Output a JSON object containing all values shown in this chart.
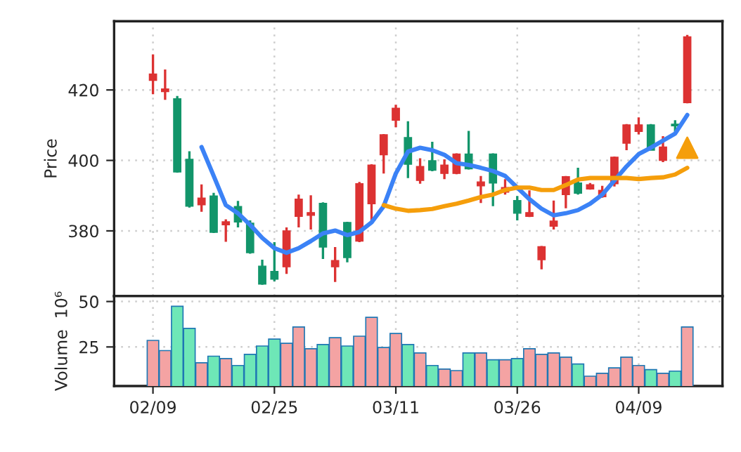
{
  "chart_data": [
    {
      "type": "candlestick",
      "ylabel": "Price",
      "ylim": [
        361.5,
        439.5
      ],
      "yticks": [
        380,
        400,
        420
      ],
      "grid": true,
      "tick_labels": "y",
      "legend": false,
      "categories": [
        null,
        null,
        null,
        null,
        null,
        null,
        null,
        null,
        null,
        null,
        null,
        null,
        null,
        null,
        null,
        null,
        null,
        null,
        null,
        null,
        null,
        null,
        null,
        null,
        null,
        null,
        null,
        null,
        null,
        null,
        null,
        null,
        null,
        null,
        null,
        null,
        null,
        null,
        null,
        null,
        null,
        null,
        null,
        null,
        null
      ],
      "ohlc": [
        [
          422.7,
          430.1,
          418.8,
          424.5
        ],
        [
          419.5,
          425.8,
          417.2,
          420.3
        ],
        [
          417.5,
          418.3,
          396.5,
          396.7
        ],
        [
          400.3,
          402.6,
          386.6,
          387.0
        ],
        [
          387.4,
          393.2,
          385.4,
          389.3
        ],
        [
          389.9,
          390.8,
          379.4,
          379.6
        ],
        [
          381.7,
          383.3,
          376.9,
          382.6
        ],
        [
          386.9,
          388.5,
          381.0,
          382.5
        ],
        [
          382.2,
          383.0,
          373.5,
          373.8
        ],
        [
          370.0,
          371.8,
          364.7,
          364.9
        ],
        [
          368.5,
          376.8,
          365.7,
          366.3
        ],
        [
          369.8,
          381.0,
          367.8,
          380.0
        ],
        [
          384.1,
          390.3,
          381.0,
          389.0
        ],
        [
          384.4,
          390.1,
          380.4,
          385.2
        ],
        [
          387.8,
          388.1,
          372.0,
          375.4
        ],
        [
          369.8,
          375.4,
          365.5,
          371.6
        ],
        [
          382.4,
          382.6,
          371.1,
          372.4
        ],
        [
          377.1,
          393.9,
          376.8,
          393.4
        ],
        [
          387.7,
          398.9,
          383.0,
          398.7
        ],
        [
          401.6,
          407.5,
          396.3,
          407.3
        ],
        [
          411.4,
          415.8,
          409.4,
          414.8
        ],
        [
          406.5,
          411.1,
          395.0,
          398.9
        ],
        [
          394.3,
          400.6,
          393.4,
          398.3
        ],
        [
          399.9,
          405.3,
          396.9,
          397.2
        ],
        [
          396.3,
          400.3,
          394.7,
          398.7
        ],
        [
          396.3,
          402.0,
          396.1,
          401.8
        ],
        [
          401.8,
          408.4,
          397.4,
          397.6
        ],
        [
          392.8,
          395.6,
          387.9,
          393.9
        ],
        [
          401.8,
          402.0,
          387.0,
          393.6
        ],
        [
          391.0,
          394.7,
          390.3,
          392.3
        ],
        [
          388.6,
          389.9,
          383.0,
          385.0
        ],
        [
          384.1,
          391.5,
          383.9,
          385.2
        ],
        [
          371.8,
          375.7,
          369.1,
          375.5
        ],
        [
          381.3,
          388.6,
          380.4,
          382.8
        ],
        [
          390.3,
          395.6,
          386.4,
          395.4
        ],
        [
          393.6,
          397.9,
          390.3,
          390.7
        ],
        [
          391.9,
          393.6,
          391.7,
          393.1
        ],
        [
          389.7,
          392.8,
          389.4,
          391.5
        ],
        [
          393.4,
          401.1,
          392.6,
          400.9
        ],
        [
          404.9,
          410.3,
          402.9,
          410.1
        ],
        [
          408.2,
          412.2,
          407.4,
          410.1
        ],
        [
          410.1,
          410.3,
          402.9,
          402.9
        ],
        [
          400.0,
          406.9,
          399.5,
          403.8
        ],
        [
          410.3,
          411.4,
          408.2,
          409.8
        ],
        [
          416.4,
          435.6,
          416.2,
          435.1
        ]
      ],
      "colors": [
        "#dc3232",
        "#dc3232",
        "#12956a",
        "#12956a",
        "#dc3232",
        "#12956a",
        "#dc3232",
        "#12956a",
        "#12956a",
        "#12956a",
        "#12956a",
        "#dc3232",
        "#dc3232",
        "#dc3232",
        "#12956a",
        "#dc3232",
        "#12956a",
        "#dc3232",
        "#dc3232",
        "#dc3232",
        "#dc3232",
        "#12956a",
        "#dc3232",
        "#12956a",
        "#dc3232",
        "#dc3232",
        "#12956a",
        "#dc3232",
        "#12956a",
        "#dc3232",
        "#12956a",
        "#dc3232",
        "#dc3232",
        "#dc3232",
        "#dc3232",
        "#12956a",
        "#dc3232",
        "#dc3232",
        "#dc3232",
        "#dc3232",
        "#dc3232",
        "#12956a",
        "#dc3232",
        "#12956a",
        "#dc3232"
      ],
      "series": [
        {
          "type": "line",
          "color": "#3b82f6",
          "values": [
            null,
            null,
            null,
            null,
            403.8,
            395.6,
            387.3,
            385.0,
            381.7,
            378.0,
            375.1,
            373.8,
            375.1,
            377.1,
            379.3,
            380.1,
            378.8,
            379.7,
            382.4,
            387.0,
            396.3,
            402.5,
            403.6,
            402.9,
            401.6,
            399.2,
            398.7,
            397.9,
            397.0,
            395.6,
            392.3,
            389.0,
            386.3,
            384.4,
            385.0,
            385.9,
            387.7,
            390.3,
            394.3,
            398.3,
            401.8,
            403.6,
            405.6,
            407.6,
            412.9
          ]
        },
        {
          "type": "line",
          "color": "#f59e0b",
          "values": [
            null,
            null,
            null,
            null,
            null,
            null,
            null,
            null,
            null,
            null,
            null,
            null,
            null,
            null,
            null,
            null,
            null,
            null,
            null,
            387.3,
            386.3,
            385.7,
            385.9,
            386.2,
            387.0,
            387.7,
            388.6,
            389.6,
            390.3,
            391.6,
            392.3,
            392.3,
            391.6,
            391.6,
            393.0,
            394.6,
            395.0,
            395.0,
            395.0,
            395.0,
            394.7,
            395.0,
            395.2,
            396.0,
            397.9
          ]
        },
        {
          "type": "scatter",
          "marker": "triangle",
          "color": "#f59e0b",
          "values": [
            null,
            null,
            null,
            null,
            null,
            null,
            null,
            null,
            null,
            null,
            null,
            null,
            null,
            null,
            null,
            null,
            null,
            null,
            null,
            null,
            null,
            null,
            null,
            null,
            null,
            null,
            null,
            null,
            null,
            null,
            null,
            null,
            null,
            null,
            null,
            null,
            null,
            null,
            null,
            null,
            null,
            null,
            null,
            null,
            403.6
          ]
        }
      ]
    },
    {
      "type": "bar",
      "ylabel": "Volume  10⁶",
      "ylim": [
        3.5,
        53
      ],
      "yticks": [
        25,
        50
      ],
      "grid": true,
      "legend": false,
      "categories": [
        "02/09",
        null,
        null,
        null,
        null,
        null,
        null,
        null,
        null,
        null,
        "02/25",
        null,
        null,
        null,
        null,
        null,
        null,
        null,
        null,
        null,
        "03/11",
        null,
        null,
        null,
        null,
        null,
        null,
        null,
        null,
        null,
        "03/26",
        null,
        null,
        null,
        null,
        null,
        null,
        null,
        null,
        null,
        "04/09",
        null,
        null,
        null,
        null
      ],
      "values": [
        28.6,
        23,
        47.4,
        35.2,
        16.3,
        19.9,
        18.6,
        14.8,
        20.9,
        25.5,
        29.3,
        27,
        36,
        24,
        26.3,
        30.1,
        25.5,
        30.9,
        41.3,
        24.7,
        32.4,
        26.3,
        21.7,
        14.8,
        12.8,
        12,
        21.7,
        21.7,
        17.9,
        17.9,
        18.6,
        24,
        20.9,
        21.7,
        19.4,
        15.6,
        8.9,
        10.5,
        13.5,
        19.4,
        14.8,
        12.5,
        10.5,
        11.7,
        36
      ],
      "colors": [
        "#f4a3a3",
        "#f4a3a3",
        "#6ee7b7",
        "#6ee7b7",
        "#f4a3a3",
        "#6ee7b7",
        "#f4a3a3",
        "#6ee7b7",
        "#6ee7b7",
        "#6ee7b7",
        "#6ee7b7",
        "#f4a3a3",
        "#f4a3a3",
        "#f4a3a3",
        "#6ee7b7",
        "#f4a3a3",
        "#6ee7b7",
        "#f4a3a3",
        "#f4a3a3",
        "#f4a3a3",
        "#f4a3a3",
        "#6ee7b7",
        "#f4a3a3",
        "#6ee7b7",
        "#f4a3a3",
        "#f4a3a3",
        "#6ee7b7",
        "#f4a3a3",
        "#6ee7b7",
        "#f4a3a3",
        "#6ee7b7",
        "#f4a3a3",
        "#f4a3a3",
        "#f4a3a3",
        "#f4a3a3",
        "#6ee7b7",
        "#f4a3a3",
        "#f4a3a3",
        "#f4a3a3",
        "#f4a3a3",
        "#f4a3a3",
        "#6ee7b7",
        "#f4a3a3",
        "#6ee7b7",
        "#f4a3a3"
      ]
    }
  ]
}
